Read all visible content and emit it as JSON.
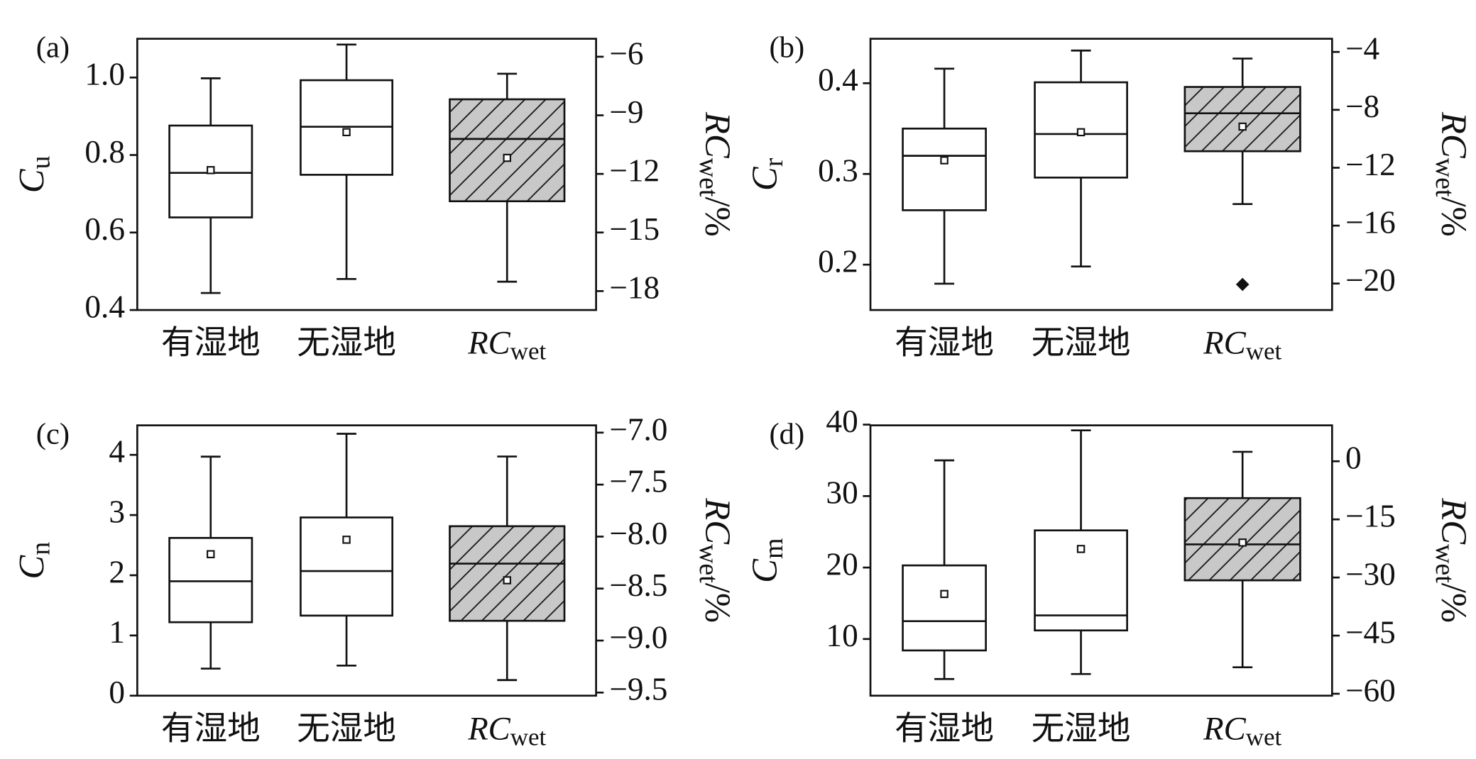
{
  "chart_data": [
    {
      "type": "box",
      "panel": "(a)",
      "y_label": {
        "text": "C",
        "sub": "u"
      },
      "y2_label": {
        "text": "RC",
        "sub": "wet",
        "suffix": "/%"
      },
      "categories": [
        {
          "text": "有湿地"
        },
        {
          "text": "无湿地"
        },
        {
          "text": "RC",
          "sub": "wet"
        }
      ],
      "ylim": [
        0.4,
        1.1
      ],
      "yticks": [
        0.4,
        0.6,
        0.8,
        {
          "value": 1,
          "label": "1.0"
        }
      ],
      "y2lim": [
        -18.97,
        -5.08
      ],
      "y2ticks": [
        {
          "value": -6,
          "label": "−6"
        },
        {
          "value": -9,
          "label": "−9"
        },
        {
          "value": -12,
          "label": "−12"
        },
        {
          "value": -15,
          "label": "−15"
        },
        {
          "value": -18,
          "label": "−18"
        }
      ],
      "boxes": [
        {
          "axis": "y",
          "color": "#ffffff",
          "whislo": 0.444,
          "q1": 0.639,
          "med": 0.754,
          "q3": 0.876,
          "whishi": 0.998,
          "mean": 0.761
        },
        {
          "axis": "y",
          "color": "#ffffff",
          "whislo": 0.48,
          "q1": 0.749,
          "med": 0.873,
          "q3": 0.993,
          "whishi": 1.085,
          "mean": 0.859
        },
        {
          "axis": "y2",
          "color": "#c8c8c8",
          "hatch": true,
          "whislo": -17.52,
          "q1": -13.4,
          "med": -10.21,
          "q3": -8.18,
          "whishi": -6.87,
          "mean": -11.18
        }
      ]
    },
    {
      "type": "box",
      "panel": "(b)",
      "y_label": {
        "text": "C",
        "sub": "r"
      },
      "y2_label": {
        "text": "RC",
        "sub": "wet",
        "suffix": "/%"
      },
      "categories": [
        {
          "text": "有湿地"
        },
        {
          "text": "无湿地"
        },
        {
          "text": "RC",
          "sub": "wet"
        }
      ],
      "ylim": [
        0.15,
        0.449
      ],
      "yticks": [
        0.2,
        0.3,
        0.4
      ],
      "y2lim": [
        -21.83,
        -3.09
      ],
      "y2ticks": [
        {
          "value": -4,
          "label": "−4"
        },
        {
          "value": -8,
          "label": "−8"
        },
        {
          "value": -12,
          "label": "−12"
        },
        {
          "value": -16,
          "label": "−16"
        },
        {
          "value": -20,
          "label": "−20"
        }
      ],
      "boxes": [
        {
          "axis": "y",
          "color": "#ffffff",
          "whislo": 0.179,
          "q1": 0.26,
          "med": 0.32,
          "q3": 0.35,
          "whishi": 0.416,
          "mean": 0.315
        },
        {
          "axis": "y",
          "color": "#ffffff",
          "whislo": 0.198,
          "q1": 0.296,
          "med": 0.344,
          "q3": 0.401,
          "whishi": 0.436,
          "mean": 0.346
        },
        {
          "axis": "y2",
          "color": "#c8c8c8",
          "hatch": true,
          "whislo": -14.51,
          "q1": -10.86,
          "med": -8.24,
          "q3": -6.42,
          "whishi": -4.46,
          "mean": -9.16,
          "fliers": [
            -20.06
          ]
        }
      ]
    },
    {
      "type": "box",
      "panel": "(c)",
      "y_label": {
        "text": "C",
        "sub": "n"
      },
      "y2_label": {
        "text": "RC",
        "sub": "wet",
        "suffix": "/%"
      },
      "categories": [
        {
          "text": "有湿地"
        },
        {
          "text": "无湿地"
        },
        {
          "text": "RC",
          "sub": "wet"
        }
      ],
      "ylim": [
        0,
        4.49
      ],
      "yticks": [
        0,
        1,
        2,
        3,
        4
      ],
      "y2lim": [
        -9.53,
        -6.93
      ],
      "y2ticks": [
        {
          "value": -7,
          "label": "−7.0"
        },
        {
          "value": -7.5,
          "label": "−7.5"
        },
        {
          "value": -8,
          "label": "−8.0"
        },
        {
          "value": -8.5,
          "label": "−8.5"
        },
        {
          "value": -9,
          "label": "−9.0"
        },
        {
          "value": -9.5,
          "label": "−9.5"
        }
      ],
      "boxes": [
        {
          "axis": "y",
          "color": "#ffffff",
          "whislo": 0.45,
          "q1": 1.22,
          "med": 1.9,
          "q3": 2.62,
          "whishi": 3.97,
          "mean": 2.35
        },
        {
          "axis": "y",
          "color": "#ffffff",
          "whislo": 0.5,
          "q1": 1.33,
          "med": 2.07,
          "q3": 2.96,
          "whishi": 4.35,
          "mean": 2.59
        },
        {
          "axis": "y2",
          "color": "#c8c8c8",
          "hatch": true,
          "whislo": -9.38,
          "q1": -8.81,
          "med": -8.26,
          "q3": -7.9,
          "whishi": -7.23,
          "mean": -8.42
        }
      ]
    },
    {
      "type": "box",
      "panel": "(d)",
      "y_label": {
        "text": "C",
        "sub": "m"
      },
      "y2_label": {
        "text": "RC",
        "sub": "wet",
        "suffix": "/%"
      },
      "categories": [
        {
          "text": "有湿地"
        },
        {
          "text": "无湿地"
        },
        {
          "text": "RC",
          "sub": "wet"
        }
      ],
      "ylim": [
        2.07,
        39.9
      ],
      "yticks": [
        10,
        20,
        30,
        40
      ],
      "y2lim": [
        -60.5,
        9.27
      ],
      "y2ticks": [
        0,
        {
          "value": -15,
          "label": "−15"
        },
        {
          "value": -30,
          "label": "−30"
        },
        {
          "value": -45,
          "label": "−45"
        },
        {
          "value": -60,
          "label": "−60"
        }
      ],
      "boxes": [
        {
          "axis": "y",
          "color": "#ffffff",
          "whislo": 4.4,
          "q1": 8.4,
          "med": 12.5,
          "q3": 20.3,
          "whishi": 35.0,
          "mean": 16.3
        },
        {
          "axis": "y",
          "color": "#ffffff",
          "whislo": 5.1,
          "q1": 11.2,
          "med": 13.3,
          "q3": 25.2,
          "whishi": 39.2,
          "mean": 22.6
        },
        {
          "axis": "y2",
          "color": "#c8c8c8",
          "hatch": true,
          "whislo": -53.17,
          "q1": -30.73,
          "med": -21.46,
          "q3": -9.51,
          "whishi": 2.44,
          "mean": -20.98
        }
      ]
    }
  ]
}
